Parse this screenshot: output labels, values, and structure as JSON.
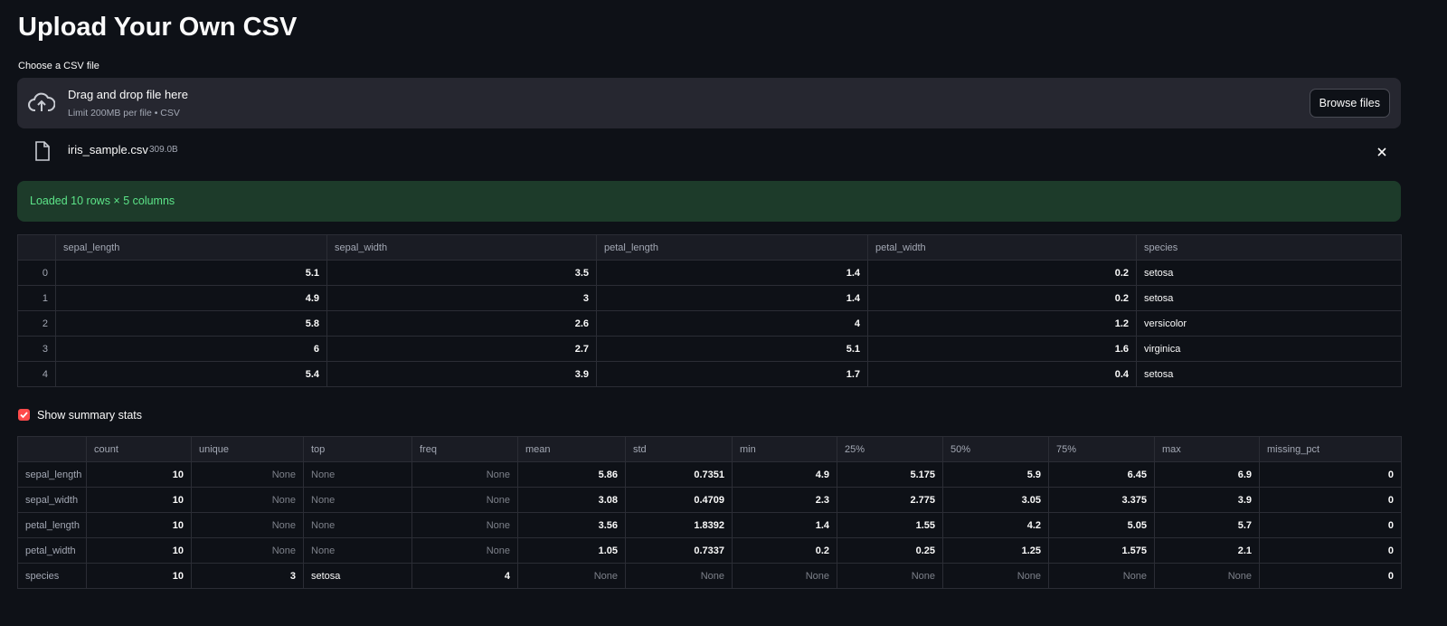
{
  "title": "Upload Your Own CSV",
  "uploader": {
    "label": "Choose a CSV file",
    "drop_text": "Drag and drop file here",
    "limit_text": "Limit 200MB per file • CSV",
    "button": "Browse files",
    "file_name": "iris_sample.csv",
    "file_size": "309.0B"
  },
  "status": "Loaded 10 rows × 5 columns",
  "data_table": {
    "columns": [
      "sepal_length",
      "sepal_width",
      "petal_length",
      "petal_width",
      "species"
    ],
    "rows": [
      [
        0,
        5.1,
        3.5,
        1.4,
        0.2,
        "setosa"
      ],
      [
        1,
        4.9,
        3,
        1.4,
        0.2,
        "setosa"
      ],
      [
        2,
        5.8,
        2.6,
        4,
        1.2,
        "versicolor"
      ],
      [
        3,
        6,
        2.7,
        5.1,
        1.6,
        "virginica"
      ],
      [
        4,
        5.4,
        3.9,
        1.7,
        0.4,
        "setosa"
      ]
    ]
  },
  "checkbox": {
    "label": "Show summary stats",
    "checked": true
  },
  "summary_table": {
    "columns": [
      "count",
      "unique",
      "top",
      "freq",
      "mean",
      "std",
      "min",
      "25%",
      "50%",
      "75%",
      "max",
      "missing_pct"
    ],
    "rows": [
      [
        "sepal_length",
        10,
        "None",
        "None",
        "None",
        5.86,
        0.7351,
        4.9,
        5.175,
        5.9,
        6.45,
        6.9,
        0
      ],
      [
        "sepal_width",
        10,
        "None",
        "None",
        "None",
        3.08,
        0.4709,
        2.3,
        2.775,
        3.05,
        3.375,
        3.9,
        0
      ],
      [
        "petal_length",
        10,
        "None",
        "None",
        "None",
        3.56,
        1.8392,
        1.4,
        1.55,
        4.2,
        5.05,
        5.7,
        0
      ],
      [
        "petal_width",
        10,
        "None",
        "None",
        "None",
        1.05,
        0.7337,
        0.2,
        0.25,
        1.25,
        1.575,
        2.1,
        0
      ],
      [
        "species",
        10,
        3,
        "setosa",
        4,
        "None",
        "None",
        "None",
        "None",
        "None",
        "None",
        "None",
        0
      ]
    ]
  }
}
